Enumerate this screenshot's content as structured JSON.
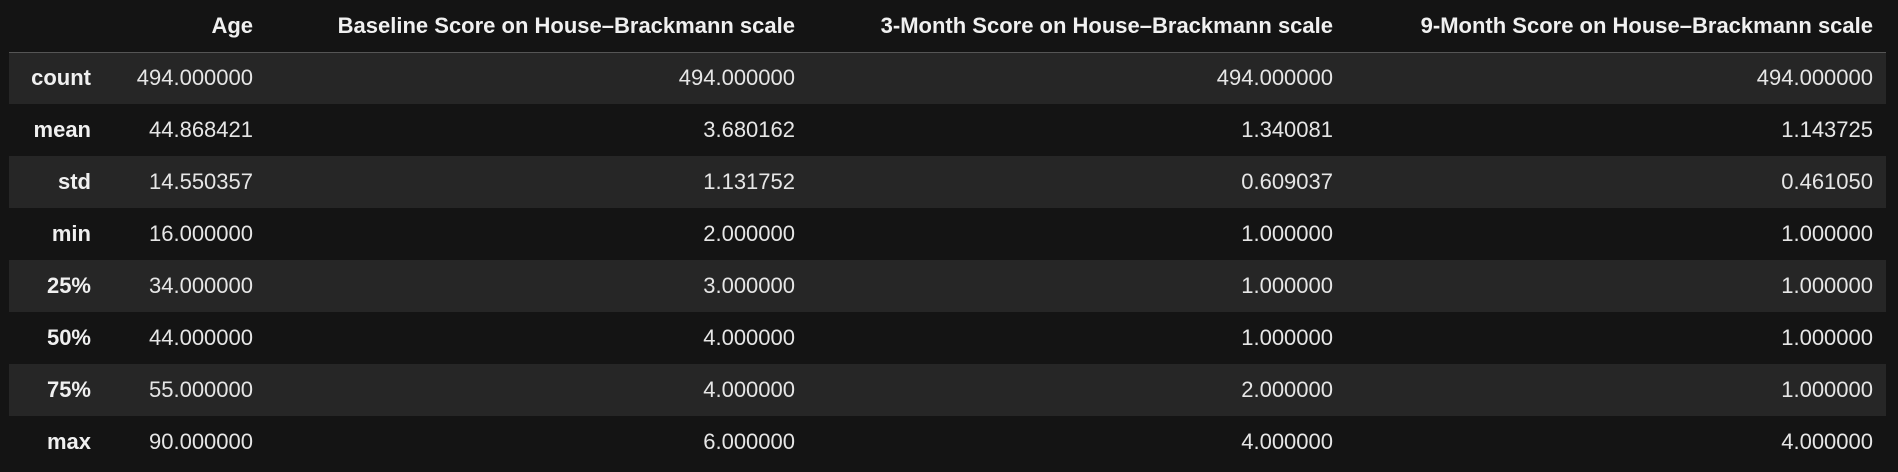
{
  "table": {
    "index_header": "",
    "columns": [
      "Age",
      "Baseline Score on House–Brackmann scale",
      "3-Month Score on House–Brackmann scale",
      "9-Month Score on House–Brackmann scale"
    ],
    "rows": [
      {
        "label": "count",
        "values": [
          "494.000000",
          "494.000000",
          "494.000000",
          "494.000000"
        ]
      },
      {
        "label": "mean",
        "values": [
          "44.868421",
          "3.680162",
          "1.340081",
          "1.143725"
        ]
      },
      {
        "label": "std",
        "values": [
          "14.550357",
          "1.131752",
          "0.609037",
          "0.461050"
        ]
      },
      {
        "label": "min",
        "values": [
          "16.000000",
          "2.000000",
          "1.000000",
          "1.000000"
        ]
      },
      {
        "label": "25%",
        "values": [
          "34.000000",
          "3.000000",
          "1.000000",
          "1.000000"
        ]
      },
      {
        "label": "50%",
        "values": [
          "44.000000",
          "4.000000",
          "1.000000",
          "1.000000"
        ]
      },
      {
        "label": "75%",
        "values": [
          "55.000000",
          "4.000000",
          "2.000000",
          "1.000000"
        ]
      },
      {
        "label": "max",
        "values": [
          "90.000000",
          "6.000000",
          "4.000000",
          "4.000000"
        ]
      }
    ]
  },
  "colors": {
    "background": "#141414",
    "stripe": "#262626",
    "text": "#e6e6e6",
    "header_rule": "#555555"
  }
}
